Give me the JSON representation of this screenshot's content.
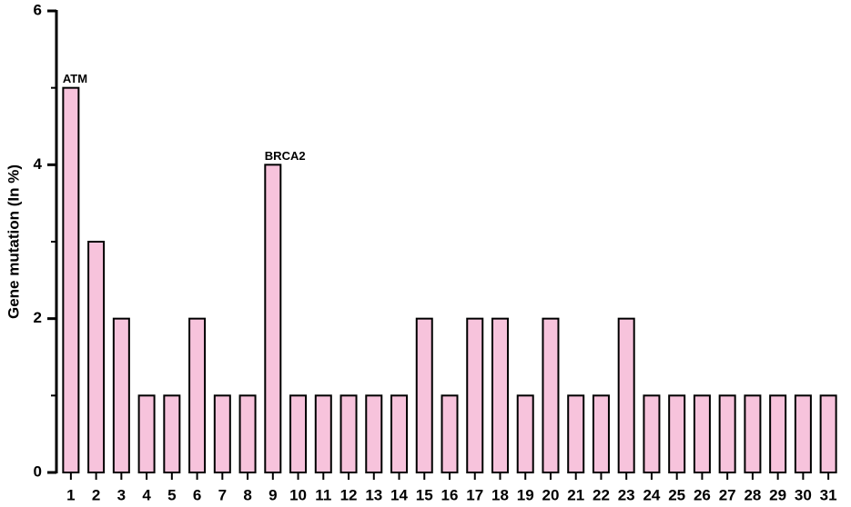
{
  "chart_data": {
    "type": "bar",
    "y_label": "Gene mutation (In %)",
    "categories": [
      "1",
      "2",
      "3",
      "4",
      "5",
      "6",
      "7",
      "8",
      "9",
      "10",
      "11",
      "12",
      "13",
      "14",
      "15",
      "16",
      "17",
      "18",
      "19",
      "20",
      "21",
      "22",
      "23",
      "24",
      "25",
      "26",
      "27",
      "28",
      "29",
      "30",
      "31"
    ],
    "values": [
      5,
      3,
      2,
      1,
      1,
      2,
      1,
      1,
      4,
      1,
      1,
      1,
      1,
      1,
      2,
      1,
      2,
      2,
      1,
      2,
      1,
      1,
      2,
      1,
      1,
      1,
      1,
      1,
      1,
      1,
      1
    ],
    "color": "#f7c3dc",
    "ylim": [
      0,
      6
    ],
    "yticks": [
      0,
      2,
      4,
      6
    ],
    "yminorticks": [
      1,
      3,
      5
    ],
    "annotations": [
      {
        "text": "ATM",
        "category": "1"
      },
      {
        "text": "BRCA2",
        "category": "9"
      }
    ]
  }
}
